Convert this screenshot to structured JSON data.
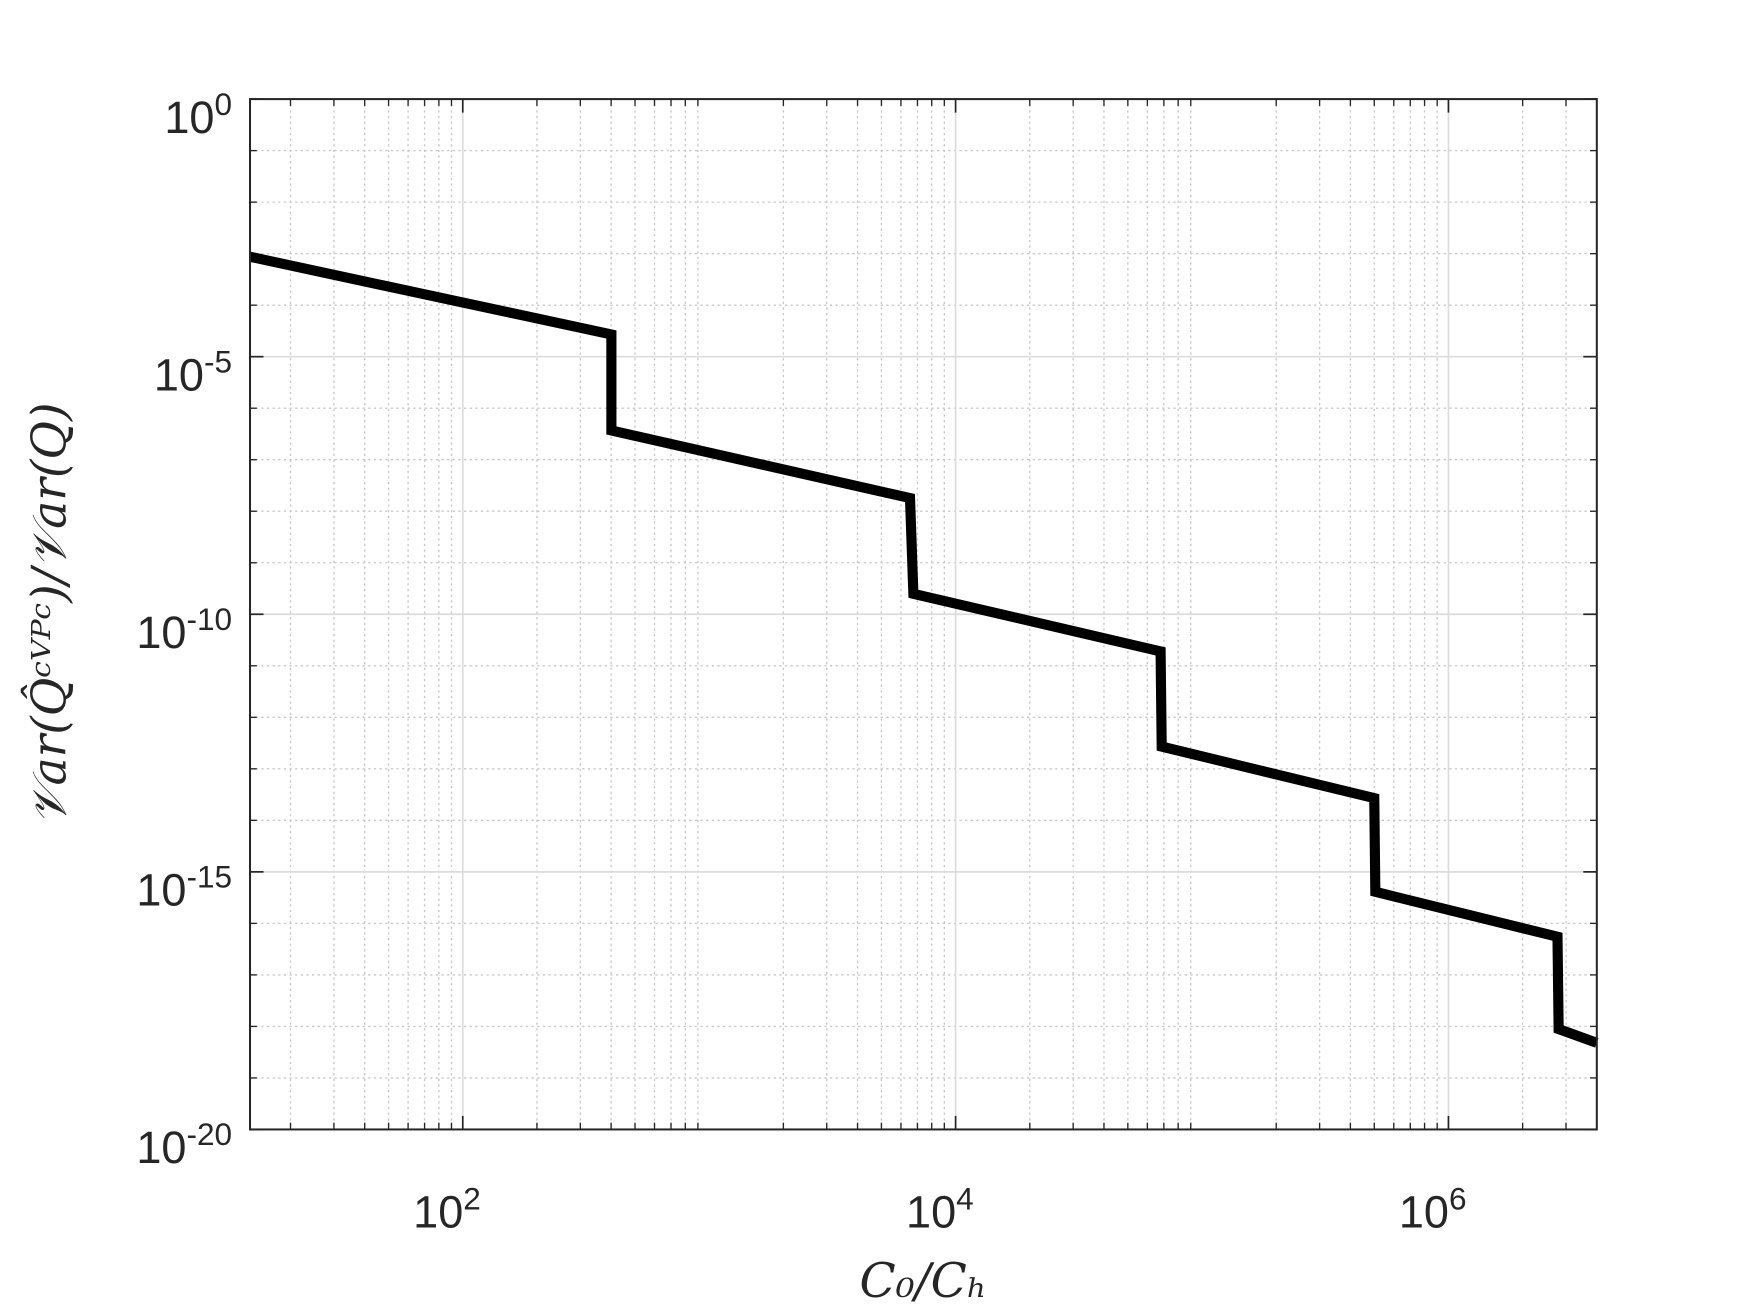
{
  "chart_data": {
    "type": "line",
    "xlabel": "C₀/Cₕ",
    "ylabel": "𝒱ar(Q̂ᶜⱽᴾᶜ)/𝒱ar(Q)",
    "x": [
      13.7,
      401,
      401,
      6530,
      6740,
      67900,
      68600,
      500000,
      505000,
      2770000,
      2800000,
      4000000
    ],
    "values": [
      0.00087,
      2.7e-05,
      3.7e-07,
      1.8e-08,
      2.5e-10,
      1.9e-11,
      2.7e-13,
      2.7e-14,
      4.1e-16,
      5.5e-17,
      8.9e-19,
      4.8e-19
    ],
    "color": "#000000",
    "xscale": "log",
    "yscale": "log",
    "xlim": [
      13.7,
      4000000
    ],
    "ylim": [
      1e-20,
      1
    ],
    "xticks": [
      {
        "value": 100,
        "label": "10^2"
      },
      {
        "value": 10000,
        "label": "10^4"
      },
      {
        "value": 1000000,
        "label": "10^6"
      }
    ],
    "yticks": [
      {
        "value": 1e-20,
        "label": "10^-20"
      },
      {
        "value": 1e-15,
        "label": "10^-15"
      },
      {
        "value": 1e-10,
        "label": "10^-10"
      },
      {
        "value": 1e-05,
        "label": "10^-5"
      },
      {
        "value": 1,
        "label": "10^0"
      }
    ],
    "grid": true,
    "minor_grid": true
  }
}
